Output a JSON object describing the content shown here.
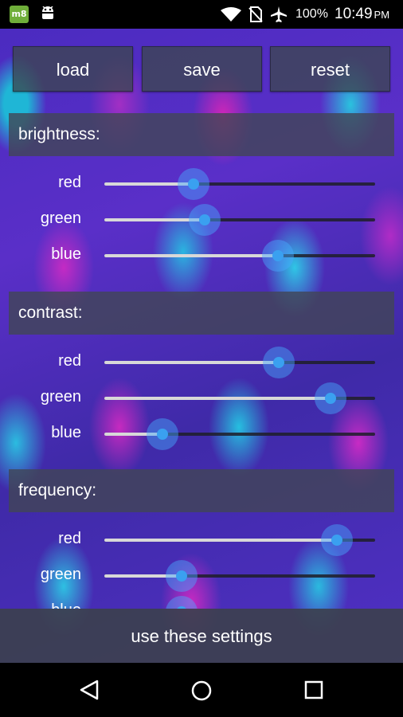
{
  "status_bar": {
    "app_badge": "m8",
    "battery": "100%",
    "time": "10:49",
    "ampm": "PM",
    "icons": [
      "android-robot-icon",
      "wifi-icon",
      "no-sim-icon",
      "airplane-mode-icon"
    ]
  },
  "toolbar": {
    "load_label": "load",
    "save_label": "save",
    "reset_label": "reset"
  },
  "sections": [
    {
      "title": "brightness:",
      "sliders": [
        {
          "label": "red",
          "value": 0.33
        },
        {
          "label": "green",
          "value": 0.37
        },
        {
          "label": "blue",
          "value": 0.64
        }
      ]
    },
    {
      "title": "contrast:",
      "sliders": [
        {
          "label": "red",
          "value": 0.645
        },
        {
          "label": "green",
          "value": 0.835
        },
        {
          "label": "blue",
          "value": 0.215
        }
      ]
    },
    {
      "title": "frequency:",
      "sliders": [
        {
          "label": "red",
          "value": 0.86
        },
        {
          "label": "green",
          "value": 0.285
        },
        {
          "label": "blue",
          "value": 0.285
        }
      ]
    }
  ],
  "footer": {
    "apply_label": "use these settings"
  },
  "colors": {
    "accent": "#3aa0f0",
    "panel": "#41465a"
  },
  "nav_icons": [
    "back-icon",
    "home-icon",
    "recents-icon"
  ]
}
